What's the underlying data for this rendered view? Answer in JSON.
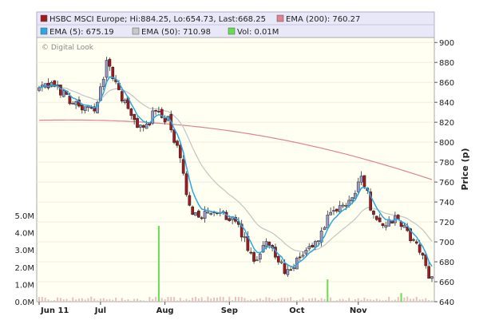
{
  "legend": {
    "hsbc": "HSBC MSCI Europe; Hi:884.25, Lo:654.73, Last:668.25",
    "ema200": "EMA (200): 760.27",
    "ema5": "EMA (5): 675.19",
    "ema50": "EMA (50): 710.98",
    "vol": "Vol: 0.01M"
  },
  "watermark": "© Digital Look",
  "colors": {
    "hsbc": "#a31920",
    "ema200": "#e0828f",
    "ema5": "#2aa8e0",
    "ema50": "#c8c8c8",
    "vol": "#66dd55",
    "legend_bg": "#e8e8f8",
    "plot_bg": "#fffff2"
  },
  "chart_data": {
    "type": "candlestick",
    "x": {
      "labels": [
        "Jun 11",
        "Jul",
        "Aug",
        "Sep",
        "Oct",
        "Nov"
      ],
      "label_days": [
        0,
        20,
        41,
        62,
        84,
        104
      ],
      "total_days": 128
    },
    "y_price": {
      "label": "Price (p)",
      "ticks": [
        640,
        660,
        680,
        700,
        720,
        740,
        760,
        780,
        800,
        820,
        840,
        860,
        880,
        900
      ],
      "range": [
        640,
        905
      ]
    },
    "y_volume": {
      "ticks": [
        "0.0M",
        "1.0M",
        "2.0M",
        "3.0M",
        "4.0M",
        "5.0M"
      ],
      "range": [
        0,
        5
      ]
    },
    "ema200": {
      "start": 822,
      "end": 760
    },
    "price_path": [
      [
        0,
        853
      ],
      [
        5,
        857
      ],
      [
        10,
        843
      ],
      [
        15,
        832
      ],
      [
        19,
        837
      ],
      [
        22,
        880
      ],
      [
        25,
        858
      ],
      [
        30,
        825
      ],
      [
        34,
        812
      ],
      [
        38,
        832
      ],
      [
        42,
        822
      ],
      [
        46,
        782
      ],
      [
        49,
        733
      ],
      [
        53,
        727
      ],
      [
        58,
        727
      ],
      [
        62,
        726
      ],
      [
        66,
        708
      ],
      [
        70,
        677
      ],
      [
        74,
        704
      ],
      [
        78,
        678
      ],
      [
        82,
        668
      ],
      [
        86,
        690
      ],
      [
        90,
        698
      ],
      [
        94,
        722
      ],
      [
        98,
        734
      ],
      [
        102,
        745
      ],
      [
        105,
        768
      ],
      [
        108,
        736
      ],
      [
        112,
        716
      ],
      [
        116,
        723
      ],
      [
        120,
        710
      ],
      [
        124,
        690
      ],
      [
        127,
        668
      ]
    ],
    "volume_spikes": [
      {
        "day": 39,
        "value": 4.4
      },
      {
        "day": 94,
        "value": 1.3
      },
      {
        "day": 118,
        "value": 0.5
      }
    ]
  }
}
